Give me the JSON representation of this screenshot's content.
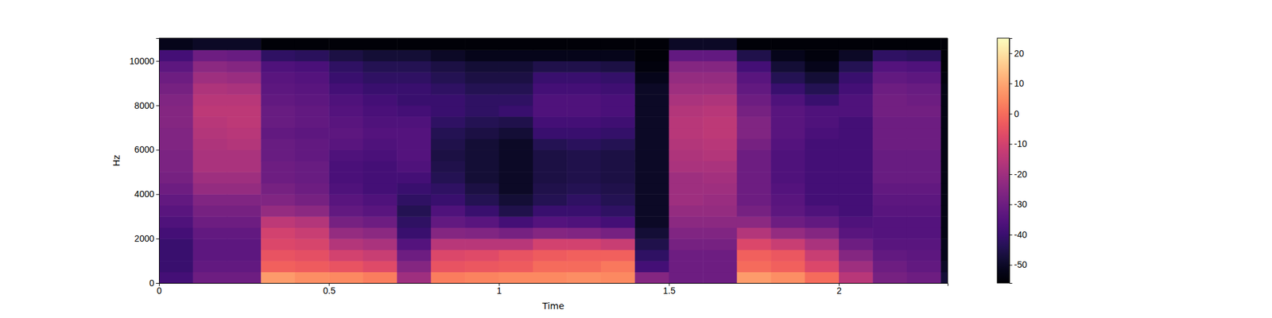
{
  "chart_data": {
    "type": "heatmap",
    "x_label": "Time",
    "y_label": "Hz",
    "color": "magma",
    "xlim": [
      0,
      2.32
    ],
    "ylim": [
      0,
      11025
    ],
    "xticks": [
      0,
      0.5,
      1,
      1.5,
      2
    ],
    "yticks": [
      0,
      2000,
      4000,
      6000,
      8000,
      10000
    ],
    "x_edges": [
      0,
      0.1,
      0.2,
      0.3,
      0.4,
      0.5,
      0.6,
      0.7,
      0.8,
      0.9,
      1.0,
      1.1,
      1.2,
      1.3,
      1.4,
      1.5,
      1.6,
      1.7,
      1.8,
      1.9,
      2.0,
      2.1,
      2.2,
      2.3,
      2.32
    ],
    "y_edges": [
      0,
      500,
      1000,
      1500,
      2000,
      2500,
      3000,
      3500,
      4000,
      4500,
      5000,
      5500,
      6000,
      6500,
      7000,
      7500,
      8000,
      8500,
      9000,
      9500,
      10000,
      10500,
      11025
    ],
    "values": [
      [
        -38,
        -40,
        -40,
        -40,
        -38,
        -36,
        -34,
        -32,
        -30,
        -28,
        -27,
        -27,
        -26,
        -26,
        -25,
        -25,
        -26,
        -28,
        -30,
        -33,
        -38,
        -52
      ],
      [
        -30,
        -32,
        -33,
        -33,
        -32,
        -30,
        -28,
        -26,
        -22,
        -20,
        -18,
        -18,
        -17,
        -16,
        -15,
        -14,
        -15,
        -17,
        -20,
        -24,
        -30,
        -50
      ],
      [
        -30,
        -32,
        -33,
        -33,
        -32,
        -30,
        -28,
        -26,
        -22,
        -20,
        -18,
        -18,
        -16,
        -15,
        -14,
        -14,
        -15,
        -18,
        -21,
        -25,
        -31,
        -50
      ],
      [
        8,
        -2,
        -5,
        -8,
        -10,
        -14,
        -22,
        -26,
        -28,
        -30,
        -30,
        -31,
        -31,
        -32,
        -31,
        -31,
        -32,
        -33,
        -34,
        -36,
        -42,
        -55
      ],
      [
        6,
        -3,
        -6,
        -9,
        -12,
        -16,
        -24,
        -28,
        -30,
        -31,
        -31,
        -32,
        -32,
        -33,
        -32,
        -32,
        -33,
        -34,
        -35,
        -37,
        -43,
        -55
      ],
      [
        5,
        -5,
        -10,
        -16,
        -22,
        -28,
        -32,
        -34,
        -36,
        -37,
        -37,
        -36,
        -34,
        -33,
        -34,
        -35,
        -36,
        -38,
        -40,
        -42,
        -46,
        -55
      ],
      [
        3,
        -7,
        -12,
        -18,
        -24,
        -30,
        -34,
        -36,
        -38,
        -38,
        -38,
        -37,
        -36,
        -35,
        -36,
        -37,
        -38,
        -40,
        -42,
        -44,
        -48,
        -55
      ],
      [
        -20,
        -25,
        -30,
        -35,
        -40,
        -42,
        -44,
        -42,
        -40,
        -38,
        -36,
        -35,
        -35,
        -35,
        -36,
        -38,
        -40,
        -40,
        -42,
        -44,
        -48,
        -55
      ],
      [
        3,
        -5,
        -8,
        -15,
        -25,
        -32,
        -36,
        -40,
        -42,
        -44,
        -45,
        -46,
        -45,
        -44,
        -42,
        -40,
        -40,
        -42,
        -44,
        -46,
        -50,
        -55
      ],
      [
        4,
        -4,
        -7,
        -15,
        -26,
        -34,
        -40,
        -44,
        -46,
        -48,
        -48,
        -48,
        -48,
        -46,
        -44,
        -42,
        -42,
        -44,
        -46,
        -48,
        -52,
        -55
      ],
      [
        5,
        -3,
        -5,
        -15,
        -28,
        -38,
        -45,
        -48,
        -50,
        -50,
        -50,
        -50,
        -50,
        -48,
        -45,
        -40,
        -42,
        -44,
        -46,
        -48,
        -52,
        -55
      ],
      [
        5,
        0,
        -3,
        -10,
        -25,
        -35,
        -40,
        -44,
        -45,
        -46,
        -46,
        -46,
        -44,
        -40,
        -38,
        -36,
        -36,
        -38,
        -40,
        -45,
        -52,
        -55
      ],
      [
        6,
        0,
        -2,
        -10,
        -26,
        -36,
        -40,
        -42,
        -44,
        -45,
        -45,
        -45,
        -43,
        -40,
        -38,
        -36,
        -36,
        -38,
        -40,
        -45,
        -52,
        -55
      ],
      [
        5,
        2,
        -2,
        -12,
        -28,
        -38,
        -42,
        -44,
        -45,
        -46,
        -46,
        -46,
        -44,
        -41,
        -39,
        -37,
        -37,
        -39,
        -41,
        -46,
        -52,
        -55
      ],
      [
        -25,
        -38,
        -42,
        -45,
        -48,
        -50,
        -50,
        -50,
        -50,
        -50,
        -50,
        -50,
        -50,
        -50,
        -50,
        -50,
        -50,
        -50,
        -52,
        -54,
        -55,
        -55
      ],
      [
        -30,
        -30,
        -30,
        -28,
        -26,
        -24,
        -22,
        -20,
        -20,
        -20,
        -18,
        -17,
        -16,
        -15,
        -15,
        -16,
        -18,
        -20,
        -22,
        -25,
        -32,
        -50
      ],
      [
        -30,
        -30,
        -30,
        -28,
        -26,
        -24,
        -22,
        -21,
        -20,
        -19,
        -18,
        -16,
        -15,
        -14,
        -14,
        -15,
        -17,
        -20,
        -22,
        -25,
        -32,
        -50
      ],
      [
        8,
        0,
        -2,
        -8,
        -16,
        -24,
        -28,
        -30,
        -30,
        -30,
        -30,
        -30,
        -28,
        -26,
        -26,
        -28,
        -30,
        -32,
        -34,
        -38,
        -45,
        -55
      ],
      [
        6,
        -2,
        -4,
        -12,
        -22,
        -30,
        -33,
        -34,
        -35,
        -36,
        -36,
        -36,
        -35,
        -34,
        -34,
        -34,
        -36,
        -40,
        -44,
        -48,
        -52,
        -55
      ],
      [
        0,
        -8,
        -12,
        -18,
        -25,
        -32,
        -36,
        -38,
        -38,
        -38,
        -38,
        -38,
        -38,
        -37,
        -36,
        -36,
        -40,
        -44,
        -48,
        -52,
        -54,
        -55
      ],
      [
        -15,
        -20,
        -25,
        -30,
        -34,
        -36,
        -38,
        -38,
        -38,
        -38,
        -38,
        -38,
        -38,
        -38,
        -38,
        -36,
        -36,
        -38,
        -40,
        -44,
        -50,
        -55
      ],
      [
        -28,
        -30,
        -32,
        -34,
        -35,
        -35,
        -34,
        -33,
        -32,
        -31,
        -31,
        -31,
        -30,
        -30,
        -30,
        -29,
        -29,
        -30,
        -32,
        -35,
        -42,
        -55
      ],
      [
        -30,
        -32,
        -33,
        -34,
        -35,
        -35,
        -34,
        -33,
        -32,
        -31,
        -31,
        -31,
        -30,
        -30,
        -30,
        -29,
        -30,
        -31,
        -33,
        -36,
        -43,
        -55
      ],
      [
        -48,
        -50,
        -52,
        -52,
        -53,
        -53,
        -53,
        -53,
        -53,
        -53,
        -53,
        -53,
        -53,
        -53,
        -53,
        -53,
        -53,
        -53,
        -54,
        -55,
        -55,
        -55
      ]
    ],
    "colorbar": {
      "range": [
        -56,
        25
      ],
      "ticks": [
        -50,
        -40,
        -30,
        -20,
        -10,
        0,
        10,
        20
      ]
    }
  }
}
